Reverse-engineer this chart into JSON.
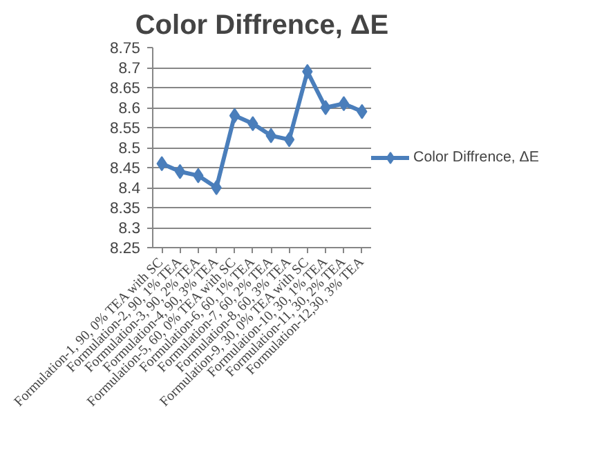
{
  "chart_data": {
    "type": "line",
    "title": "Color Diffrence, ΔE",
    "categories": [
      "Formulation-1, 90, 0% TEA with SC",
      "Formulation-2, 90, 1% TEA",
      "Formulation-3, 90, 2% TEA",
      "Formulation-4, 90, 3% TEA",
      "Formulation-5, 60, 0% TEA with SC",
      "Formulation-6, 60, 1% TEA",
      "Formulation-7, 60, 2% TEA",
      "Formulation-8, 60, 3% TEA",
      "Formulation-9, 30, 0% TEA with SC",
      "Formulation-10, 30, 1% TEA",
      "Formulation-11, 30, 2% TEA",
      "Formulation-12,30, 3% TEA"
    ],
    "series": [
      {
        "name": "Color Diffrence, ΔE",
        "color": "#4a7ebb",
        "values": [
          8.46,
          8.44,
          8.43,
          8.4,
          8.58,
          8.56,
          8.53,
          8.52,
          8.69,
          8.6,
          8.61,
          8.59
        ]
      }
    ],
    "ylim": [
      8.25,
      8.75
    ],
    "yticks": [
      8.25,
      8.3,
      8.35,
      8.4,
      8.45,
      8.5,
      8.55,
      8.6,
      8.65,
      8.7,
      8.75
    ],
    "grid": "y",
    "legend": "right",
    "marker": "diamond",
    "line_style": "solid"
  }
}
